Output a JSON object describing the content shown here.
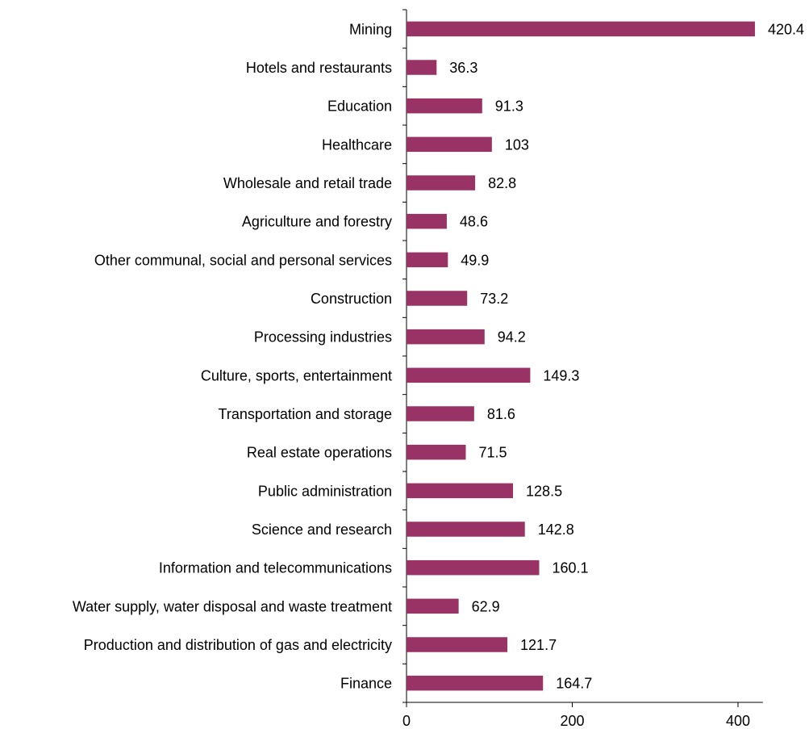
{
  "chart_data": {
    "type": "bar",
    "orientation": "horizontal",
    "title": "",
    "xlabel": "",
    "ylabel": "",
    "categories": [
      "Mining",
      "Hotels and restaurants",
      "Education",
      "Healthcare",
      "Wholesale and retail trade",
      "Agriculture and forestry",
      "Other communal, social and personal services",
      "Construction",
      "Processing industries",
      "Culture, sports, entertainment",
      "Transportation and storage",
      "Real estate operations",
      "Public administration",
      "Science and research",
      "Information and telecommunications",
      "Water supply, water disposal and waste treatment",
      "Production and distribution of gas and electricity",
      "Finance"
    ],
    "values": [
      420.4,
      36.3,
      91.3,
      103,
      82.8,
      48.6,
      49.9,
      73.2,
      94.2,
      149.3,
      81.6,
      71.5,
      128.5,
      142.8,
      160.1,
      62.9,
      121.7,
      164.7
    ],
    "value_labels": [
      "420.4",
      "36.3",
      "91.3",
      "103",
      "82.8",
      "48.6",
      "49.9",
      "73.2",
      "94.2",
      "149.3",
      "81.6",
      "71.5",
      "128.5",
      "142.8",
      "160.1",
      "62.9",
      "121.7",
      "164.7"
    ],
    "xlim": [
      0,
      430
    ],
    "x_ticks": [
      0,
      200,
      400
    ],
    "x_tick_labels": [
      "0",
      "200",
      "400"
    ],
    "grid": false,
    "legend": "none",
    "bar_color": "#993366"
  }
}
